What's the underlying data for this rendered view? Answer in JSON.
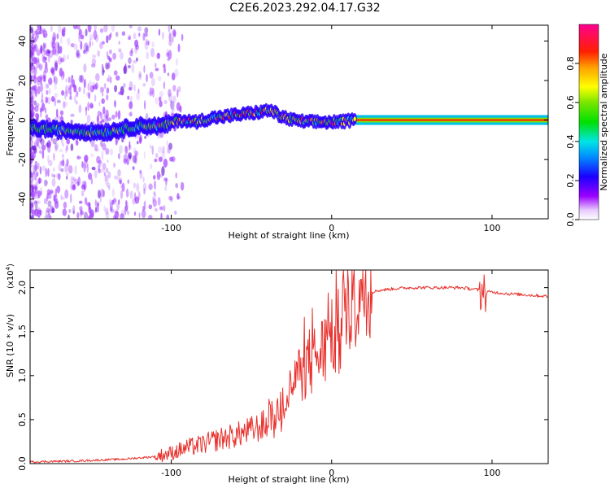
{
  "title": "C2E6.2023.292.04.17.G32",
  "chart_data": [
    {
      "type": "heatmap",
      "xlabel": "Height of straight line (km)",
      "ylabel": "Frequency (Hz)",
      "xlim": [
        -188,
        135
      ],
      "ylim": [
        -50,
        48
      ],
      "xticks": [
        -100,
        0,
        100
      ],
      "yticks": [
        -40,
        -20,
        0,
        20,
        40
      ],
      "trace": {
        "x": [
          -188,
          -170,
          -150,
          -140,
          -120,
          -105,
          -95,
          -85,
          -75,
          -65,
          -55,
          -45,
          -38,
          -32,
          -25,
          -15,
          -5,
          5,
          15,
          30,
          60,
          100,
          135
        ],
        "y": [
          -4,
          -5,
          -6,
          -6,
          -3,
          -3,
          0,
          -1,
          1,
          2,
          3,
          4,
          5,
          2,
          0,
          -1,
          -1,
          -1,
          0,
          0,
          0,
          0,
          0
        ]
      },
      "colorbar": {
        "label": "Normalized spectral amplitude",
        "ticks": [
          0.0,
          0.2,
          0.4,
          0.6,
          0.8
        ],
        "range": [
          0,
          1
        ]
      }
    },
    {
      "type": "line",
      "xlabel": "Height of straight line (km)",
      "ylabel": "SNR (10 * v/v)",
      "exponent_label": "(x10",
      "exponent_power": "4",
      "exponent_close": ")",
      "xlim": [
        -188,
        135
      ],
      "ylim": [
        0,
        2.2
      ],
      "xticks": [
        -100,
        0,
        100
      ],
      "yticks": [
        0.0,
        0.5,
        1.0,
        1.5,
        2.0
      ],
      "color": "#e8302c",
      "series": {
        "x": [
          -188,
          -160,
          -130,
          -110,
          -100,
          -90,
          -80,
          -70,
          -60,
          -50,
          -40,
          -35,
          -30,
          -25,
          -20,
          -15,
          -10,
          -5,
          0,
          5,
          10,
          15,
          20,
          25,
          30,
          40,
          50,
          60,
          70,
          80,
          90,
          95,
          100,
          110,
          120,
          135
        ],
        "y": [
          0.02,
          0.03,
          0.05,
          0.08,
          0.12,
          0.18,
          0.22,
          0.28,
          0.32,
          0.38,
          0.45,
          0.55,
          0.68,
          0.85,
          1.0,
          1.15,
          1.2,
          1.3,
          1.4,
          1.55,
          1.75,
          1.85,
          1.93,
          1.95,
          1.97,
          1.99,
          2.0,
          2.0,
          2.0,
          2.0,
          1.98,
          1.95,
          1.95,
          1.93,
          1.92,
          1.9
        ]
      }
    }
  ]
}
